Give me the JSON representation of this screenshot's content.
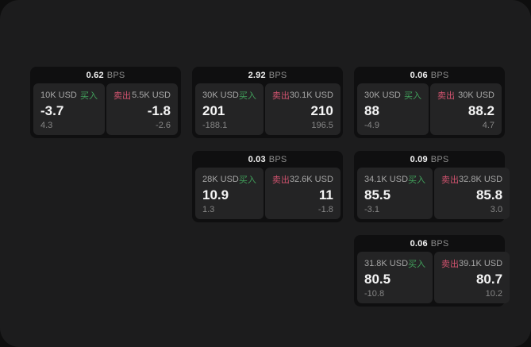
{
  "labels": {
    "bps_unit": "BPS",
    "buy": "买入",
    "sell": "卖出"
  },
  "colors": {
    "buy": "#41a05b",
    "sell": "#d2536f",
    "panel_background": "#1c1c1d",
    "card_background": "#0f0f10",
    "tile_background": "#242425"
  },
  "cards": [
    {
      "bps": "0.62",
      "buy": {
        "amount": "10K USD",
        "price": "-3.7",
        "delta": "4.3"
      },
      "sell": {
        "amount": "5.5K USD",
        "price": "-1.8",
        "delta": "-2.6"
      }
    },
    {
      "bps": "2.92",
      "buy": {
        "amount": "30K USD",
        "price": "201",
        "delta": "-188.1"
      },
      "sell": {
        "amount": "30.1K USD",
        "price": "210",
        "delta": "196.5"
      }
    },
    {
      "bps": "0.06",
      "buy": {
        "amount": "30K USD",
        "price": "88",
        "delta": "-4.9"
      },
      "sell": {
        "amount": "30K USD",
        "price": "88.2",
        "delta": "4.7"
      }
    },
    {
      "bps": "0.03",
      "buy": {
        "amount": "28K USD",
        "price": "10.9",
        "delta": "1.3"
      },
      "sell": {
        "amount": "32.6K USD",
        "price": "11",
        "delta": "-1.8"
      }
    },
    {
      "bps": "0.09",
      "buy": {
        "amount": "34.1K USD",
        "price": "85.5",
        "delta": "-3.1"
      },
      "sell": {
        "amount": "32.8K USD",
        "price": "85.8",
        "delta": "3.0"
      }
    },
    {
      "bps": "0.06",
      "buy": {
        "amount": "31.8K USD",
        "price": "80.5",
        "delta": "-10.8"
      },
      "sell": {
        "amount": "39.1K USD",
        "price": "80.7",
        "delta": "10.2"
      }
    }
  ]
}
